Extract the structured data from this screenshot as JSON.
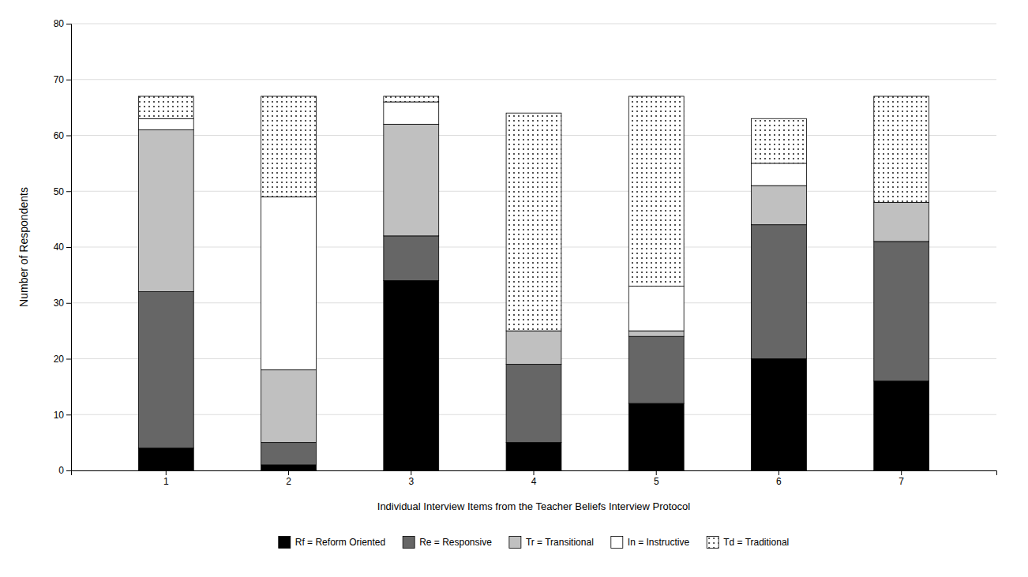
{
  "chart_data": {
    "type": "bar",
    "stacked": true,
    "categories": [
      "1",
      "2",
      "3",
      "4",
      "5",
      "6",
      "7"
    ],
    "series": [
      {
        "name": "Rf = Reform Oriented",
        "color": "#000000",
        "values": [
          4,
          1,
          34,
          5,
          12,
          20,
          16
        ]
      },
      {
        "name": "Re = Responsive",
        "color": "#666666",
        "values": [
          28,
          4,
          8,
          14,
          12,
          24,
          25
        ]
      },
      {
        "name": "Tr = Transitional",
        "color": "#c0c0c0",
        "values": [
          29,
          13,
          20,
          6,
          1,
          7,
          7
        ]
      },
      {
        "name": "In = Instructive",
        "color": "#ffffff",
        "values": [
          2,
          31,
          4,
          0,
          8,
          4,
          0
        ]
      },
      {
        "name": "Td = Traditional",
        "color": "#ffffff",
        "values": [
          4,
          18,
          1,
          39,
          34,
          8,
          19
        ]
      }
    ],
    "xlabel": "Individual Interview Items from the Teacher Beliefs Interview Protocol",
    "ylabel": "Number of Respondents",
    "ylim": [
      0,
      80
    ],
    "yticks": [
      0,
      10,
      20,
      30,
      40,
      50,
      60,
      70,
      80
    ],
    "grid": true,
    "legend": "bottom"
  }
}
